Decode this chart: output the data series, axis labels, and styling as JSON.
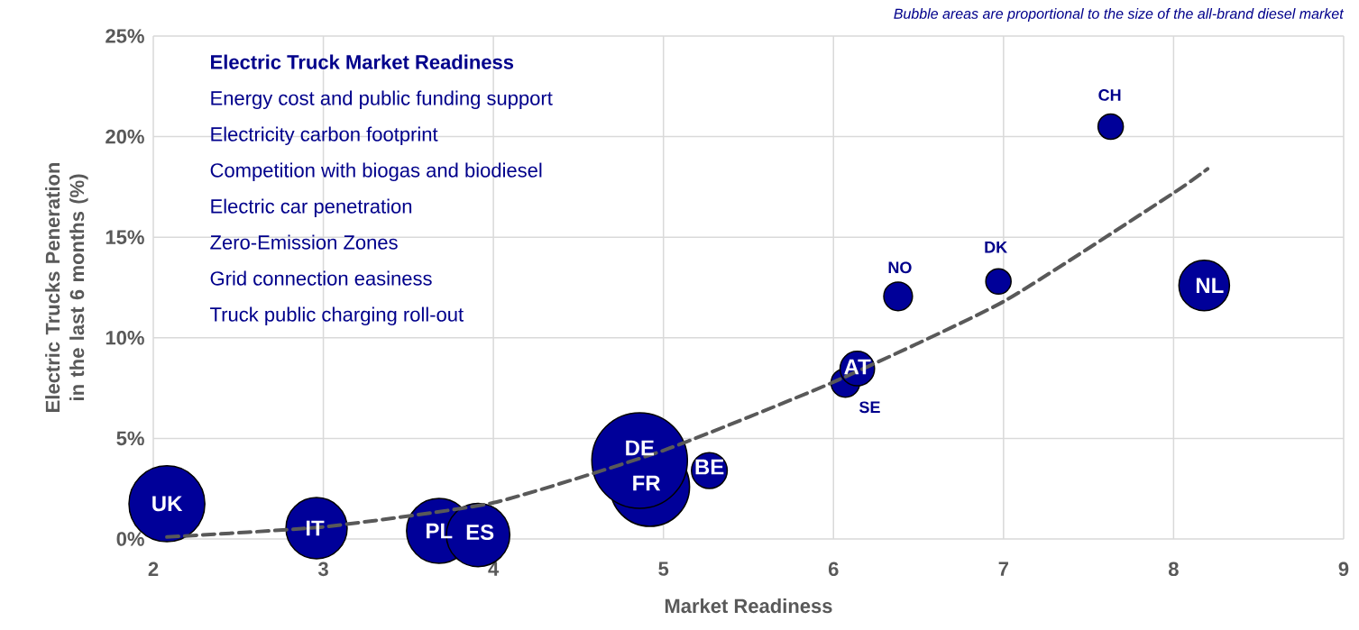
{
  "chart_data": {
    "type": "bubble",
    "xlabel": "Market Readiness",
    "ylabel": "Electric Trucks Peneration in the last 6 months (%)",
    "xlim": [
      2,
      9
    ],
    "xticks": [
      2,
      3,
      4,
      5,
      6,
      7,
      8,
      9
    ],
    "ylim": [
      0,
      25
    ],
    "yticks": [
      {
        "value": 0,
        "label": "0%"
      },
      {
        "value": 5,
        "label": "5%"
      },
      {
        "value": 10,
        "label": "10%"
      },
      {
        "value": 15,
        "label": "15%"
      },
      {
        "value": 20,
        "label": "20%"
      },
      {
        "value": 25,
        "label": "25%"
      }
    ],
    "grid": true,
    "series": [
      {
        "type": "bubble",
        "color": "#000099",
        "x": [
          2.08,
          2.96,
          3.68,
          3.91,
          4.92,
          4.86,
          5.27,
          6.07,
          6.14,
          6.38,
          6.97,
          7.63,
          8.18
        ],
        "values": [
          1.75,
          0.54,
          0.4,
          0.2,
          2.6,
          3.9,
          3.4,
          7.76,
          8.47,
          12.06,
          12.8,
          20.5,
          12.6
        ],
        "sizes": [
          0.63,
          0.41,
          0.46,
          0.44,
          0.69,
          1,
          0.14,
          0.09,
          0.13,
          0.09,
          0.07,
          0.07,
          0.28
        ]
      },
      {
        "type": "line",
        "color": "#595959",
        "line_style": "dashed",
        "x": [
          2.08,
          3,
          4,
          5,
          6,
          7,
          8,
          8.2
        ],
        "values": [
          0.1,
          0.6,
          1.8,
          4.4,
          7.8,
          11.8,
          17.2,
          18.4
        ]
      }
    ],
    "annotations": [
      "Bubble areas are proportional to the size of the all-brand diesel market",
      "Electric Truck Market Readiness",
      "Energy cost and public funding support",
      "Electricity carbon footprint",
      "Competition with biogas and biodiesel",
      "Electric car penetration",
      "Zero-Emission Zones",
      "Grid connection easiness",
      "Truck public charging roll-out",
      {
        "text": "UK",
        "x": 2.08,
        "y": 1.75
      },
      {
        "text": "IT",
        "x": 2.96,
        "y": 0.54
      },
      {
        "text": "PL",
        "x": 3.68,
        "y": 0.4
      },
      {
        "text": "ES",
        "x": 3.91,
        "y": 0.2
      },
      {
        "text": "FR",
        "x": 4.92,
        "y": 2.6
      },
      {
        "text": "DE",
        "x": 4.86,
        "y": 3.9
      },
      {
        "text": "BE",
        "x": 5.27,
        "y": 3.4
      },
      {
        "text": "SE",
        "x": 6.07,
        "y": 7.76
      },
      {
        "text": "AT",
        "x": 6.14,
        "y": 8.47
      },
      {
        "text": "NO",
        "x": 6.38,
        "y": 12.06
      },
      {
        "text": "DK",
        "x": 6.97,
        "y": 12.8
      },
      {
        "text": "CH",
        "x": 7.63,
        "y": 20.5
      },
      {
        "text": "NL",
        "x": 8.18,
        "y": 12.6
      }
    ]
  }
}
